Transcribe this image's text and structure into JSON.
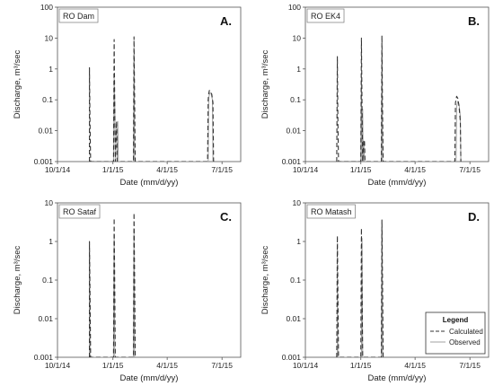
{
  "chart_data": [
    {
      "type": "line",
      "letter": "A.",
      "site": "RO Dam",
      "xlabel": "Date (mm/d/yy)",
      "ylabel": "Discharge, m³/sec",
      "yscale": "log",
      "ylim": [
        0.001,
        100
      ],
      "yticks": [
        "0.001",
        "0.01",
        "0.1",
        "1",
        "10",
        "100"
      ],
      "xlim": [
        "2014-10-01",
        "2015-08-01"
      ],
      "xticks": [
        "10/1/14",
        "1/1/15",
        "4/1/15",
        "7/1/15"
      ],
      "series": [
        {
          "name": "Calculated",
          "x": [
            "2014-11-23",
            "2014-11-23",
            "2014-11-24",
            "2014-11-25",
            "2015-01-02",
            "2015-01-03",
            "2015-01-04",
            "2015-01-05",
            "2015-01-07",
            "2015-01-08",
            "2015-02-04",
            "2015-02-05",
            "2015-02-06",
            "2015-02-07",
            "2015-06-07",
            "2015-06-08",
            "2015-06-09",
            "2015-06-10",
            "2015-06-12",
            "2015-06-14",
            "2015-06-16",
            "2015-06-17"
          ],
          "y": [
            0.001,
            1.1,
            0.02,
            0.001,
            0.001,
            9,
            0.05,
            0.001,
            0.02,
            0.001,
            0.001,
            11,
            0.1,
            0.001,
            0.001,
            0.1,
            0.16,
            0.2,
            0.19,
            0.15,
            0.08,
            0.001
          ]
        },
        {
          "name": "Observed",
          "x": [
            "2015-01-02",
            "2015-01-03",
            "2015-01-04",
            "2015-01-05",
            "2015-01-08",
            "2015-01-09",
            "2015-01-10",
            "2015-02-04",
            "2015-02-05",
            "2015-02-06",
            "2015-06-08",
            "2015-06-09",
            "2015-06-11",
            "2015-06-13",
            "2015-06-15",
            "2015-06-16"
          ],
          "y": [
            0.001,
            0.5,
            0.08,
            0.001,
            0.001,
            0.02,
            0.001,
            0.001,
            3,
            0.001,
            0.001,
            0.12,
            0.17,
            0.16,
            0.1,
            0.001
          ]
        }
      ]
    },
    {
      "type": "line",
      "letter": "B.",
      "site": "RO EK4",
      "xlabel": "Date (mm/d/yy)",
      "ylabel": "Discharge, m³/sec",
      "yscale": "log",
      "ylim": [
        0.001,
        100
      ],
      "yticks": [
        "0.001",
        "0.01",
        "0.1",
        "1",
        "10",
        "100"
      ],
      "xlim": [
        "2014-10-01",
        "2015-08-01"
      ],
      "xticks": [
        "10/1/14",
        "1/1/15",
        "4/1/15",
        "7/1/15"
      ],
      "series": [
        {
          "name": "Calculated",
          "x": [
            "2014-11-22",
            "2014-11-23",
            "2014-11-24",
            "2014-11-25",
            "2015-01-01",
            "2015-01-02",
            "2015-01-03",
            "2015-01-04",
            "2015-01-06",
            "2015-01-07",
            "2015-01-08",
            "2015-02-04",
            "2015-02-05",
            "2015-02-06",
            "2015-02-07",
            "2015-06-06",
            "2015-06-07",
            "2015-06-09",
            "2015-06-11",
            "2015-06-13",
            "2015-06-15",
            "2015-06-16"
          ],
          "y": [
            0.001,
            2.5,
            0.02,
            0.001,
            0.001,
            10,
            0.05,
            0.001,
            0.005,
            0.005,
            0.001,
            0.001,
            12,
            0.05,
            0.001,
            0.001,
            0.08,
            0.13,
            0.11,
            0.06,
            0.02,
            0.001
          ]
        },
        {
          "name": "Observed",
          "x": [
            "2015-01-01",
            "2015-01-02",
            "2015-01-03",
            "2015-01-04",
            "2015-01-05",
            "2015-01-06",
            "2015-01-07",
            "2015-02-04",
            "2015-02-05",
            "2015-02-06",
            "2015-06-08",
            "2015-06-09",
            "2015-06-11",
            "2015-06-13",
            "2015-06-15",
            "2015-06-16"
          ],
          "y": [
            0.001,
            0.6,
            0.001,
            0.05,
            0.001,
            0.004,
            0.001,
            0.001,
            4,
            0.001,
            0.001,
            0.06,
            0.09,
            0.07,
            0.03,
            0.001
          ]
        }
      ]
    },
    {
      "type": "line",
      "letter": "C.",
      "site": "RO Sataf",
      "xlabel": "Date (mm/d/yy)",
      "ylabel": "Discharge, m³/sec",
      "yscale": "log",
      "ylim": [
        0.001,
        10
      ],
      "yticks": [
        "0.001",
        "0.01",
        "0.1",
        "1",
        "10"
      ],
      "xlim": [
        "2014-10-01",
        "2015-08-01"
      ],
      "xticks": [
        "10/1/14",
        "1/1/15",
        "4/1/15",
        "7/1/15"
      ],
      "series": [
        {
          "name": "Calculated",
          "x": [
            "2014-11-23",
            "2014-11-23",
            "2014-11-24",
            "2014-11-25",
            "2015-01-02",
            "2015-01-03",
            "2015-01-04",
            "2015-01-05",
            "2015-02-04",
            "2015-02-05",
            "2015-02-06",
            "2015-02-07"
          ],
          "y": [
            0.001,
            1.0,
            0.05,
            0.001,
            0.001,
            4,
            0.05,
            0.001,
            0.001,
            5.5,
            0.1,
            0.001
          ]
        },
        {
          "name": "Observed",
          "x": [
            "2014-11-23",
            "2014-11-23",
            "2014-11-24",
            "2015-01-02",
            "2015-01-03",
            "2015-01-04",
            "2015-02-04",
            "2015-02-05",
            "2015-02-06"
          ],
          "y": [
            0.001,
            0.5,
            0.001,
            0.001,
            1.5,
            0.001,
            0.001,
            2,
            0.001
          ]
        }
      ]
    },
    {
      "type": "line",
      "letter": "D.",
      "site": "RO Matash",
      "xlabel": "Date (mm/d/yy)",
      "ylabel": "Discharge, m³/sec",
      "yscale": "log",
      "ylim": [
        0.001,
        10
      ],
      "yticks": [
        "0.001",
        "0.01",
        "0.1",
        "1",
        "10"
      ],
      "xlim": [
        "2014-10-01",
        "2015-08-01"
      ],
      "xticks": [
        "10/1/14",
        "1/1/15",
        "4/1/15",
        "7/1/15"
      ],
      "series": [
        {
          "name": "Calculated",
          "x": [
            "2014-11-22",
            "2014-11-23",
            "2014-11-24",
            "2014-11-25",
            "2015-01-01",
            "2015-01-02",
            "2015-01-03",
            "2015-01-04",
            "2015-02-04",
            "2015-02-05",
            "2015-02-06",
            "2015-02-07"
          ],
          "y": [
            0.001,
            1.4,
            0.05,
            0.001,
            0.001,
            2.2,
            0.05,
            0.001,
            0.001,
            3.6,
            0.1,
            0.001
          ]
        },
        {
          "name": "Observed",
          "x": [
            "2014-11-23",
            "2014-11-23",
            "2014-11-24",
            "2015-01-02",
            "2015-01-03",
            "2015-01-04",
            "2015-02-04",
            "2015-02-05",
            "2015-02-06"
          ],
          "y": [
            0.001,
            0.7,
            0.001,
            0.001,
            1.2,
            0.001,
            0.001,
            2,
            0.001
          ]
        }
      ]
    }
  ],
  "legend": {
    "title": "Legend",
    "items": [
      {
        "label": "Calculated",
        "style": "dashed",
        "color": "#333333"
      },
      {
        "label": "Observed",
        "style": "solid",
        "color": "#a0a0a0"
      }
    ]
  }
}
